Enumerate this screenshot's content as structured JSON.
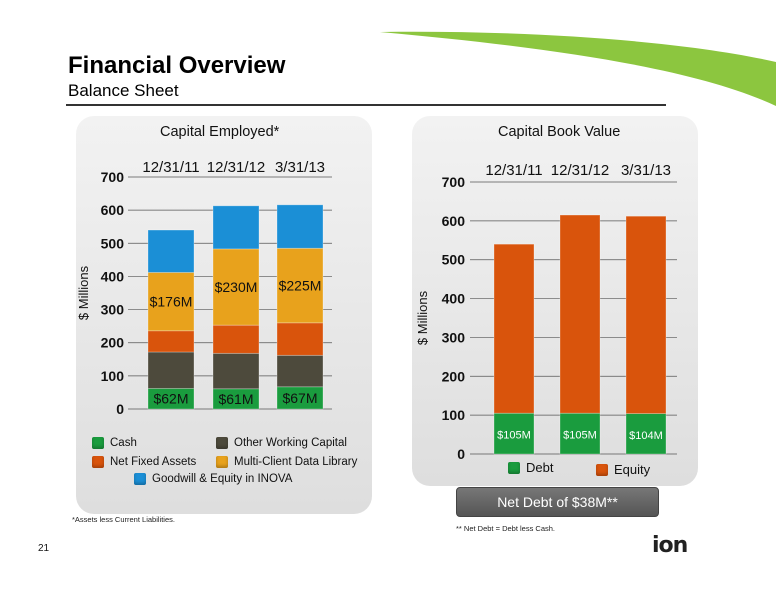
{
  "slide": {
    "title": "Financial Overview",
    "subtitle": "Balance Sheet",
    "page_number": "21",
    "logo_text": "ion",
    "accent_color": "#8cc63f",
    "footnote_left": "*Assets less Current Liabilities.",
    "footnote_right": "** Net Debt = Debt less Cash.",
    "net_debt_label": "Net Debt of $38M**"
  },
  "chart_data": [
    {
      "type": "bar",
      "stacked": true,
      "title": "Capital Employed*",
      "ylabel": "$ Millions",
      "ylim": [
        0,
        700
      ],
      "yticks": [
        0,
        100,
        200,
        300,
        400,
        500,
        600,
        700
      ],
      "categories": [
        "12/31/11",
        "12/31/12",
        "3/31/13"
      ],
      "series": [
        {
          "name": "Cash",
          "color": "#1a9c3e",
          "values": [
            62,
            61,
            67
          ],
          "labels": [
            "$62M",
            "$61M",
            "$67M"
          ]
        },
        {
          "name": "Other Working Capital",
          "color": "#4d4a3c",
          "values": [
            110,
            107,
            95
          ]
        },
        {
          "name": "Net Fixed Assets",
          "color": "#d9540c",
          "values": [
            64,
            85,
            98
          ]
        },
        {
          "name": "Multi-Client Data Library",
          "color": "#e8a21c",
          "values": [
            176,
            230,
            225
          ],
          "labels": [
            "$176M",
            "$230M",
            "$225M"
          ]
        },
        {
          "name": "Goodwill & Equity in INOVA",
          "color": "#1b8fd6",
          "values": [
            128,
            130,
            131
          ]
        }
      ],
      "legend": [
        {
          "name": "Cash",
          "color": "#1a9c3e"
        },
        {
          "name": "Other Working Capital",
          "color": "#4d4a3c"
        },
        {
          "name": "Net Fixed Assets",
          "color": "#d9540c"
        },
        {
          "name": "Multi-Client Data Library",
          "color": "#e8a21c"
        },
        {
          "name": "Goodwill & Equity in INOVA",
          "color": "#1b8fd6"
        }
      ],
      "grid": true
    },
    {
      "type": "bar",
      "stacked": true,
      "title": "Capital Book Value",
      "ylabel": "$ Millions",
      "ylim": [
        0,
        700
      ],
      "yticks": [
        0,
        100,
        200,
        300,
        400,
        500,
        600,
        700
      ],
      "categories": [
        "12/31/11",
        "12/31/12",
        "3/31/13"
      ],
      "series": [
        {
          "name": "Debt",
          "color": "#1a9c3e",
          "values": [
            105,
            105,
            104
          ],
          "labels": [
            "$105M",
            "$105M",
            "$104M"
          ]
        },
        {
          "name": "Equity",
          "color": "#d9540c",
          "values": [
            435,
            510,
            508
          ]
        }
      ],
      "legend": [
        {
          "name": "Debt",
          "color": "#1a9c3e"
        },
        {
          "name": "Equity",
          "color": "#d9540c"
        }
      ],
      "grid": true
    }
  ]
}
